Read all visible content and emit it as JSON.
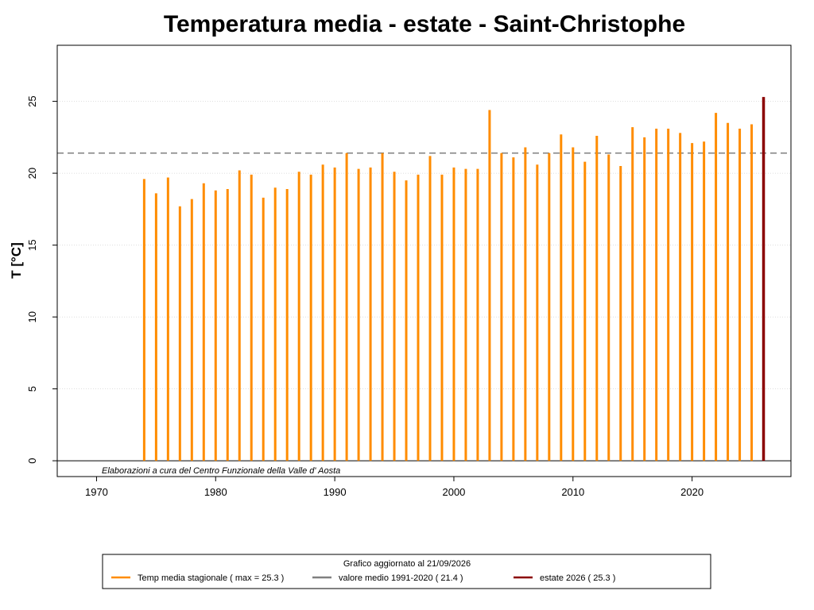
{
  "chart_data": {
    "type": "bar",
    "title": "Temperatura media -  estate - Saint-Christophe",
    "xlabel": "",
    "ylabel": "T [°C]",
    "xlim": [
      1966.7,
      2028.3
    ],
    "ylim": [
      -1.1,
      28.9
    ],
    "x_ticks": [
      1970,
      1980,
      1990,
      2000,
      2010,
      2020
    ],
    "y_ticks": [
      0,
      5,
      10,
      15,
      20,
      25
    ],
    "grid": true,
    "reference_line": {
      "value": 21.4,
      "style": "dashed",
      "color": "#808080"
    },
    "series": [
      {
        "name": "Temp media stagionale",
        "color": "#FF8C00",
        "x": [
          1974,
          1975,
          1976,
          1977,
          1978,
          1979,
          1980,
          1981,
          1982,
          1983,
          1984,
          1985,
          1986,
          1987,
          1988,
          1989,
          1990,
          1991,
          1992,
          1993,
          1994,
          1995,
          1996,
          1997,
          1998,
          1999,
          2000,
          2001,
          2002,
          2003,
          2004,
          2005,
          2006,
          2007,
          2008,
          2009,
          2010,
          2011,
          2012,
          2013,
          2014,
          2015,
          2016,
          2017,
          2018,
          2019,
          2020,
          2021,
          2022,
          2023,
          2024,
          2025
        ],
        "values": [
          19.6,
          18.6,
          19.7,
          17.7,
          18.2,
          19.3,
          18.8,
          18.9,
          20.2,
          19.9,
          18.3,
          19.0,
          18.9,
          20.1,
          19.9,
          20.6,
          20.4,
          21.4,
          20.3,
          20.4,
          21.4,
          20.1,
          19.5,
          19.9,
          21.2,
          19.9,
          20.4,
          20.3,
          20.3,
          24.4,
          21.4,
          21.1,
          21.8,
          20.6,
          21.4,
          22.7,
          21.8,
          20.8,
          22.6,
          21.3,
          20.5,
          23.2,
          22.5,
          23.1,
          23.1,
          22.8,
          22.1,
          22.2,
          24.2,
          23.5,
          23.1,
          23.4
        ]
      },
      {
        "name": "estate 2026",
        "color": "#8B0000",
        "x": [
          2026
        ],
        "values": [
          25.3
        ]
      }
    ],
    "credit": "Elaborazioni a cura del Centro Funzionale della Valle d' Aosta",
    "legend": {
      "placement": "bottom",
      "title": "Grafico aggiornato al 21/09/2026",
      "entries": [
        {
          "label": "Temp media stagionale ( max =  25.3  )",
          "color": "#FF8C00"
        },
        {
          "label": "valore medio 1991-2020 (  21.4  )",
          "color": "#808080"
        },
        {
          "label": "estate 2026 (  25.3  )",
          "color": "#8B0000"
        }
      ]
    }
  }
}
